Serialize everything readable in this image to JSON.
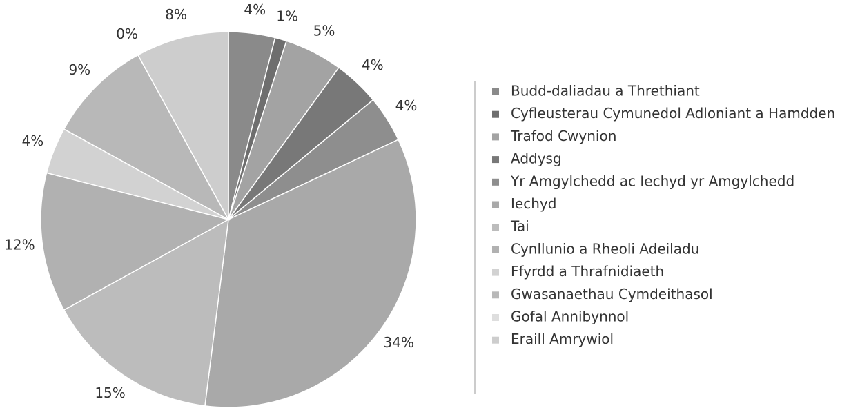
{
  "chart_data": {
    "type": "pie",
    "categories": [
      "Budd-daliadau a Threthiant",
      "Cyfleusterau Cymunedol Adloniant a Hamdden",
      "Trafod Cwynion",
      "Addysg",
      "Yr Amgylchedd ac Iechyd yr Amgylchedd",
      "Iechyd",
      "Tai",
      "Cynllunio a Rheoli Adeiladu",
      "Ffyrdd a Thrafnidiaeth",
      "Gwasanaethau Cymdeithasol",
      "Gofal Annibynnol",
      "Eraill Amrywiol"
    ],
    "values": [
      4,
      1,
      5,
      4,
      4,
      34,
      15,
      12,
      4,
      9,
      0,
      8
    ],
    "value_labels": [
      "4%",
      "1%",
      "5%",
      "4%",
      "4%",
      "34%",
      "15%",
      "12%",
      "4%",
      "9%",
      "0%",
      "8%"
    ],
    "colors": [
      "#8a8a8a",
      "#6e6e6e",
      "#a3a3a3",
      "#787878",
      "#8e8e8e",
      "#a9a9a9",
      "#bcbcbc",
      "#b1b1b1",
      "#d2d2d2",
      "#b8b8b8",
      "#dedede",
      "#cdcdcd"
    ],
    "legend": "right"
  }
}
